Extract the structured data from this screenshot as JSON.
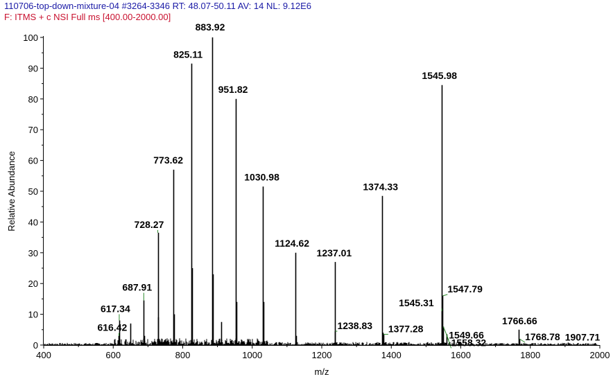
{
  "header": {
    "line1": "110706-top-down-mixture-04 #3264-3346   RT: 48.07-50.11   AV: 14   NL: 9.12E6",
    "line2": "F:  ITMS + c NSI Full ms [400.00-2000.00]"
  },
  "chart_data": {
    "type": "line",
    "title": "",
    "xlabel": "m/z",
    "ylabel": "Relative Abundance",
    "xlim": [
      400,
      2000
    ],
    "ylim": [
      0,
      100
    ],
    "xticks": [
      400,
      600,
      800,
      1000,
      1200,
      1400,
      1600,
      1800,
      2000
    ],
    "yticks": [
      0,
      10,
      20,
      30,
      40,
      50,
      60,
      70,
      80,
      90,
      100
    ],
    "peaks": [
      {
        "mz": 616.42,
        "intensity": 3,
        "label": "616.42"
      },
      {
        "mz": 617.34,
        "intensity": 8,
        "label": "617.34"
      },
      {
        "mz": 687.91,
        "intensity": 14.5,
        "label": "687.91"
      },
      {
        "mz": 728.27,
        "intensity": 36.5,
        "label": "728.27"
      },
      {
        "mz": 773.62,
        "intensity": 57,
        "label": "773.62"
      },
      {
        "mz": 825.11,
        "intensity": 91.5,
        "label": "825.11"
      },
      {
        "mz": 883.92,
        "intensity": 100,
        "label": "883.92"
      },
      {
        "mz": 951.82,
        "intensity": 80,
        "label": "951.82"
      },
      {
        "mz": 1030.98,
        "intensity": 51.5,
        "label": "1030.98"
      },
      {
        "mz": 1124.62,
        "intensity": 30,
        "label": "1124.62"
      },
      {
        "mz": 1237.01,
        "intensity": 27,
        "label": "1237.01"
      },
      {
        "mz": 1238.83,
        "intensity": 4.5,
        "label": "1238.83"
      },
      {
        "mz": 1374.33,
        "intensity": 48.5,
        "label": "1374.33"
      },
      {
        "mz": 1377.28,
        "intensity": 3.5,
        "label": "1377.28"
      },
      {
        "mz": 1545.31,
        "intensity": 11,
        "label": "1545.31"
      },
      {
        "mz": 1545.98,
        "intensity": 84.5,
        "label": "1545.98"
      },
      {
        "mz": 1547.79,
        "intensity": 16,
        "label": "1547.79"
      },
      {
        "mz": 1549.66,
        "intensity": 6,
        "label": "1549.66"
      },
      {
        "mz": 1558.32,
        "intensity": 3.5,
        "label": "1558.32"
      },
      {
        "mz": 1766.66,
        "intensity": 5,
        "label": "1766.66"
      },
      {
        "mz": 1768.78,
        "intensity": 2,
        "label": "1768.78"
      },
      {
        "mz": 1907.71,
        "intensity": 0.8,
        "label": "1907.71"
      }
    ],
    "unlabeled_peaks": [
      {
        "mz": 650,
        "intensity": 7
      },
      {
        "mz": 690,
        "intensity": 3
      },
      {
        "mz": 730,
        "intensity": 9
      },
      {
        "mz": 776,
        "intensity": 10
      },
      {
        "mz": 827,
        "intensity": 25
      },
      {
        "mz": 886,
        "intensity": 23
      },
      {
        "mz": 910,
        "intensity": 7.5
      },
      {
        "mz": 954,
        "intensity": 14
      },
      {
        "mz": 1033,
        "intensity": 14
      },
      {
        "mz": 1126,
        "intensity": 3
      },
      {
        "mz": 1376,
        "intensity": 4
      }
    ],
    "colors": {
      "spectrum": "#000000",
      "leader": "#2e8b2e",
      "header_line1": "#1a1aa6",
      "header_line2": "#c8102e"
    }
  }
}
